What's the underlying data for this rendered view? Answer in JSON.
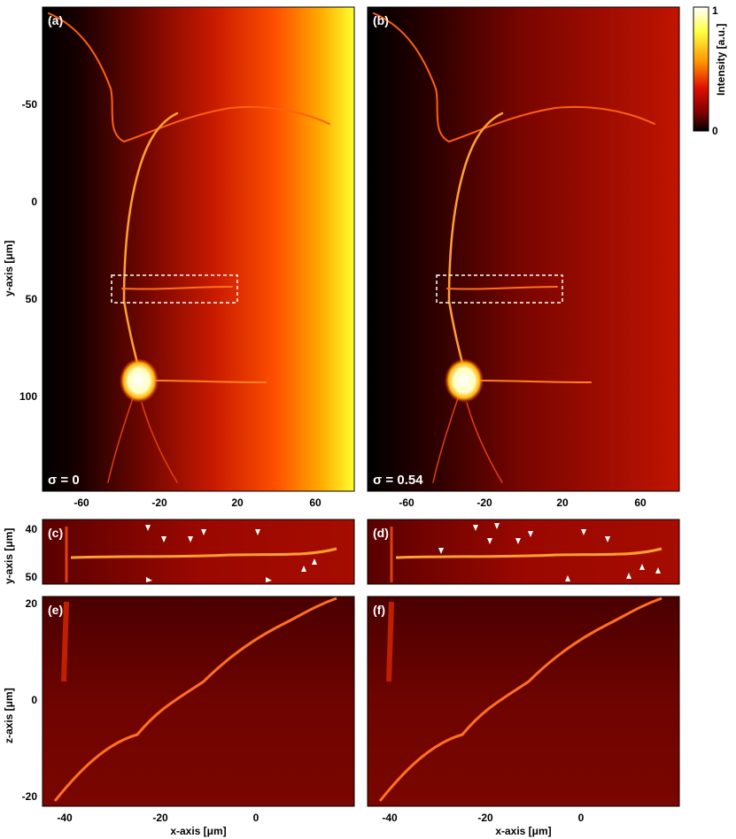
{
  "panels": {
    "a": {
      "label": "(a)",
      "sigma": "σ = 0"
    },
    "b": {
      "label": "(b)",
      "sigma": "σ = 0.54"
    },
    "c": {
      "label": "(c)"
    },
    "d": {
      "label": "(d)"
    },
    "e": {
      "label": "(e)"
    },
    "f": {
      "label": "(f)"
    }
  },
  "axes": {
    "top_y_label": "y-axis [μm]",
    "mid_y_label": "y-axis [μm]",
    "bottom_y_label": "z-axis [μm]",
    "x_label": "x-axis [μm]",
    "top_y_ticks": [
      "-50",
      "0",
      "50",
      "100"
    ],
    "top_x_ticks": [
      "-60",
      "-20",
      "20",
      "60"
    ],
    "mid_y_ticks": [
      "40",
      "50"
    ],
    "bottom_y_ticks": [
      "20",
      "0",
      "-20"
    ],
    "bottom_x_ticks": [
      "-40",
      "-20",
      "0"
    ]
  },
  "colorbar": {
    "label": "Intensity [a.u.]",
    "max_label": "1",
    "min_label": "0",
    "colors": [
      "#ffffff",
      "#ffff40",
      "#ff9000",
      "#e01000",
      "#800000",
      "#000000"
    ]
  }
}
